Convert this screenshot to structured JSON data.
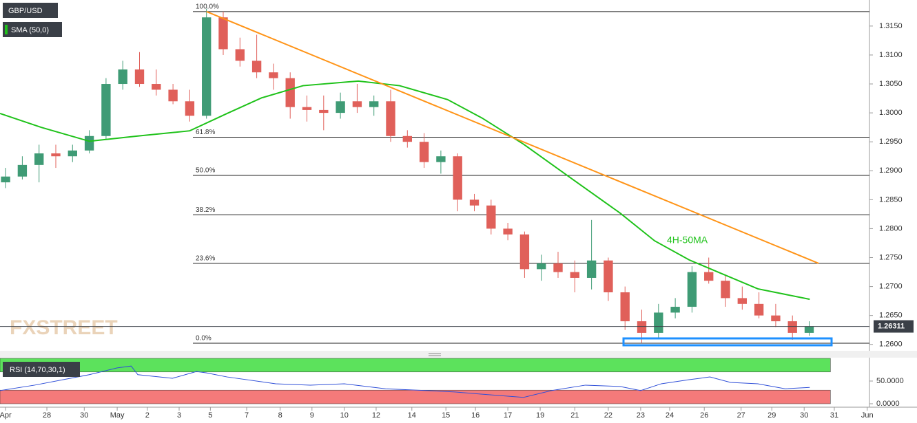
{
  "chart_data": [
    {
      "type": "candlestick",
      "name": "GBP/USD",
      "x": [
        1,
        4,
        7,
        10,
        13,
        16,
        19,
        22,
        25,
        28,
        31,
        34,
        37,
        40,
        43,
        46,
        49,
        52,
        55,
        58,
        61,
        64,
        67,
        70,
        73,
        76,
        79,
        82,
        85,
        88,
        91,
        94,
        97,
        100,
        103,
        106,
        109,
        112,
        115,
        118,
        121,
        124,
        127,
        130,
        133,
        136,
        139,
        142,
        145
      ],
      "open": [
        1.288,
        1.289,
        1.291,
        1.293,
        1.2925,
        1.2935,
        1.296,
        1.305,
        1.3075,
        1.305,
        1.304,
        1.302,
        1.2995,
        1.3165,
        1.311,
        1.309,
        1.307,
        1.306,
        1.301,
        1.3005,
        1.3,
        1.302,
        1.301,
        1.302,
        1.296,
        1.295,
        1.2915,
        1.2925,
        1.285,
        1.284,
        1.28,
        1.279,
        1.273,
        1.274,
        1.2725,
        1.2715,
        1.2745,
        1.269,
        1.264,
        1.262,
        1.2655,
        1.2665,
        1.2725,
        1.271,
        1.268,
        1.267,
        1.265,
        1.264,
        1.262
      ],
      "high": [
        1.2905,
        1.2925,
        1.2945,
        1.2945,
        1.2945,
        1.297,
        1.306,
        1.309,
        1.3105,
        1.3075,
        1.305,
        1.304,
        1.318,
        1.3175,
        1.313,
        1.3135,
        1.3085,
        1.307,
        1.303,
        1.303,
        1.3035,
        1.305,
        1.303,
        1.304,
        1.297,
        1.2965,
        1.2935,
        1.293,
        1.286,
        1.285,
        1.281,
        1.2795,
        1.2755,
        1.276,
        1.2745,
        1.2815,
        1.275,
        1.27,
        1.266,
        1.267,
        1.268,
        1.2735,
        1.275,
        1.272,
        1.27,
        1.269,
        1.267,
        1.265,
        1.264
      ],
      "low": [
        1.287,
        1.2885,
        1.288,
        1.2905,
        1.2915,
        1.293,
        1.2955,
        1.304,
        1.3045,
        1.303,
        1.3015,
        1.2985,
        1.299,
        1.31,
        1.308,
        1.306,
        1.304,
        1.299,
        1.2985,
        1.297,
        1.299,
        1.3,
        1.2995,
        1.295,
        1.294,
        1.2905,
        1.2895,
        1.283,
        1.283,
        1.279,
        1.278,
        1.2715,
        1.271,
        1.2715,
        1.269,
        1.2695,
        1.2675,
        1.2625,
        1.2603,
        1.261,
        1.2645,
        1.2655,
        1.2705,
        1.2665,
        1.266,
        1.2645,
        1.263,
        1.2608,
        1.2615
      ],
      "close": [
        1.289,
        1.291,
        1.293,
        1.2925,
        1.2935,
        1.296,
        1.305,
        1.3075,
        1.305,
        1.304,
        1.302,
        1.2995,
        1.3165,
        1.311,
        1.309,
        1.307,
        1.306,
        1.301,
        1.3005,
        1.3,
        1.302,
        1.301,
        1.302,
        1.296,
        1.295,
        1.2915,
        1.2925,
        1.285,
        1.284,
        1.28,
        1.279,
        1.273,
        1.274,
        1.2725,
        1.2715,
        1.2745,
        1.269,
        1.264,
        1.262,
        1.2655,
        1.2665,
        1.2725,
        1.271,
        1.268,
        1.267,
        1.265,
        1.264,
        1.262,
        1.2631
      ],
      "up_color": "#3f9b75",
      "down_color": "#e0605a",
      "lines": [
        {
          "name": "SMA (50,0)",
          "color": "#1fc21a",
          "x": [
            0,
            7.4,
            16,
            24.7,
            34,
            40.7,
            46.9,
            54.3,
            64.2,
            71.6,
            80.2,
            86.4,
            93.8,
            102.5,
            111.1,
            117.3,
            123.5,
            128.4,
            135.8,
            145.1
          ],
          "values": [
            1.2999,
            1.2975,
            1.2951,
            1.296,
            1.2969,
            1.2999,
            1.3026,
            1.3047,
            1.3055,
            1.3047,
            1.3023,
            1.2991,
            1.2946,
            1.2886,
            1.2827,
            1.2779,
            1.2746,
            1.2726,
            1.2696,
            1.2678
          ]
        },
        {
          "color": "#ff9418",
          "x": [
            37.0,
            146.7
          ],
          "values": [
            1.3175,
            1.274
          ]
        }
      ],
      "fib_levels": [
        {
          "label": "100.0%",
          "value": 1.3175
        },
        {
          "label": "61.8%",
          "value": 1.2958
        },
        {
          "label": "50.0%",
          "value": 1.2892
        },
        {
          "label": "38.2%",
          "value": 1.2824
        },
        {
          "label": "23.6%",
          "value": 1.274
        },
        {
          "label": "0.0%",
          "value": 1.2602
        }
      ],
      "annotation": "4H-50MA",
      "last_price": 1.26311,
      "watermark": "FXSTREET",
      "xlim": [
        0,
        155.8
      ],
      "ylim": [
        1.2589,
        1.3195
      ],
      "yticks": [
        {
          "value": 1.315,
          "label": "1.3150"
        },
        {
          "value": 1.31,
          "label": "1.3100"
        },
        {
          "value": 1.305,
          "label": "1.3050"
        },
        {
          "value": 1.3,
          "label": "1.3000"
        },
        {
          "value": 1.295,
          "label": "1.2950"
        },
        {
          "value": 1.29,
          "label": "1.2900"
        },
        {
          "value": 1.285,
          "label": "1.2850"
        },
        {
          "value": 1.28,
          "label": "1.2800"
        },
        {
          "value": 1.275,
          "label": "1.2750"
        },
        {
          "value": 1.27,
          "label": "1.2700"
        },
        {
          "value": 1.265,
          "label": "1.2650"
        },
        {
          "value": 1.26,
          "label": "1.2600"
        }
      ]
    },
    {
      "type": "line",
      "name": "RSI (14,70,30,1)",
      "color": "#2f4fd8",
      "x": [
        0,
        6.2,
        16,
        21,
        23.5,
        24.7,
        30.9,
        35.2,
        37,
        40.7,
        49.4,
        55.6,
        61.7,
        69.1,
        76.5,
        81.5,
        86.4,
        93.8,
        98.8,
        104.9,
        111.1,
        114.8,
        118.5,
        123.5,
        127.2,
        130.9,
        135.8,
        140.7,
        145.1
      ],
      "values": [
        29,
        41,
        64,
        79,
        83,
        64,
        56,
        71,
        68,
        59,
        44,
        41,
        44,
        33,
        29,
        26,
        21,
        14,
        29,
        41,
        38,
        29,
        44,
        53,
        59,
        47,
        44,
        33,
        36
      ],
      "zones": [
        {
          "from": 70,
          "to": 100,
          "color": "#5ce25c"
        },
        {
          "from": 0,
          "to": 30,
          "color": "#f47a7a"
        }
      ],
      "xlim": [
        0,
        155.8
      ],
      "ylim": [
        0,
        100
      ],
      "yticks": [
        {
          "value": 50,
          "label": "50.0000"
        },
        {
          "value": 0,
          "label": "0.0000"
        }
      ],
      "xticks": [
        {
          "value": 1.0,
          "label": "Apr"
        },
        {
          "value": 8.4,
          "label": "28"
        },
        {
          "value": 15.1,
          "label": "30"
        },
        {
          "value": 21.0,
          "label": "May"
        },
        {
          "value": 26.4,
          "label": "2"
        },
        {
          "value": 32.1,
          "label": "3"
        },
        {
          "value": 37.7,
          "label": "5"
        },
        {
          "value": 44.2,
          "label": "7"
        },
        {
          "value": 50.2,
          "label": "8"
        },
        {
          "value": 55.9,
          "label": "9"
        },
        {
          "value": 61.7,
          "label": "10"
        },
        {
          "value": 67.4,
          "label": "12"
        },
        {
          "value": 73.8,
          "label": "14"
        },
        {
          "value": 79.9,
          "label": "15"
        },
        {
          "value": 85.2,
          "label": "16"
        },
        {
          "value": 91.0,
          "label": "17"
        },
        {
          "value": 96.8,
          "label": "19"
        },
        {
          "value": 103.0,
          "label": "21"
        },
        {
          "value": 109.0,
          "label": "22"
        },
        {
          "value": 114.8,
          "label": "23"
        },
        {
          "value": 120.0,
          "label": "24"
        },
        {
          "value": 126.2,
          "label": "26"
        },
        {
          "value": 132.8,
          "label": "27"
        },
        {
          "value": 138.3,
          "label": "29"
        },
        {
          "value": 144.1,
          "label": "30"
        },
        {
          "value": 149.5,
          "label": "31"
        },
        {
          "value": 155.4,
          "label": "Jun"
        }
      ]
    }
  ]
}
